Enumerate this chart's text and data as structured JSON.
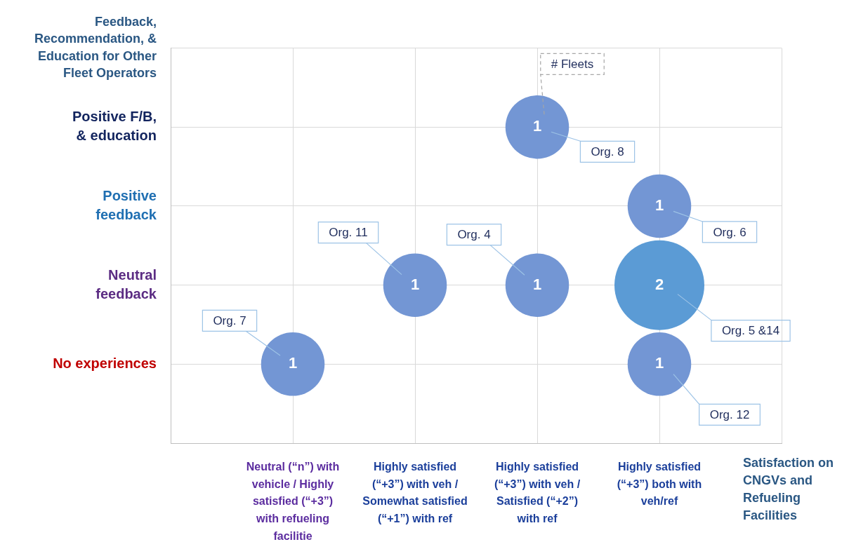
{
  "chart_data": {
    "type": "bubble",
    "xlabel": "Satisfaction on CNGVs and Refueling Facilities",
    "categories": [
      null,
      "Neutral (“n”) with vehicle / Highly satisfied (“+3”) with refueling facilitie",
      "Highly satisfied (“+3”) with veh / Somewhat satisfied (“+1”) with ref",
      "Highly satisfied (“+3”) with veh / Satisfied (“+2”) with ref",
      "Highly satisfied (“+3”) both with veh/ref",
      null
    ],
    "y_categories": [
      "Feedback, Recommendation, & Education for Other Fleet Operators",
      "Positive F/B, & education",
      "Positive feedback",
      "Neutral feedback",
      "No experiences",
      null
    ],
    "series": [
      {
        "values": [
          null,
          1,
          2,
          2,
          2,
          null
        ],
        "sizes": [
          null,
          0.5,
          0.5,
          0.5,
          1,
          null
        ],
        "value_labels": [
          null,
          "1",
          "1",
          "1",
          "2",
          null
        ],
        "colors": [
          null,
          "#7396d4",
          "#7396d4",
          "#7396d4",
          "#5b9bd5",
          null
        ]
      },
      {
        "values": [
          null,
          null,
          null,
          4,
          3,
          null
        ],
        "sizes": [
          null,
          null,
          null,
          0.5,
          0.5,
          null
        ],
        "value_labels": [
          null,
          null,
          null,
          "1",
          "1",
          null
        ],
        "colors": [
          null,
          null,
          null,
          "#7396d4",
          "#7396d4",
          null
        ]
      },
      {
        "values": [
          null,
          null,
          null,
          null,
          1,
          null
        ],
        "sizes": [
          null,
          null,
          null,
          null,
          0.5,
          null
        ],
        "value_labels": [
          null,
          null,
          null,
          null,
          "1",
          null
        ],
        "colors": [
          null,
          null,
          null,
          null,
          "#7396d4",
          null
        ]
      }
    ],
    "grid": true,
    "legend": false,
    "annotations": [
      "Org. 7",
      "Org. 11",
      "Org. 4",
      "# Fleets",
      "Org. 8",
      "Org. 6",
      "Org. 5 &14",
      "Org. 12"
    ]
  }
}
